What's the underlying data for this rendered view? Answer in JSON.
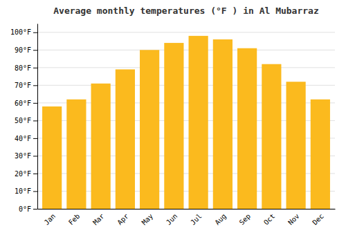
{
  "chart_data": {
    "type": "bar",
    "title": "Average monthly temperatures (°F ) in Al Mubarraz",
    "categories": [
      "Jan",
      "Feb",
      "Mar",
      "Apr",
      "May",
      "Jun",
      "Jul",
      "Aug",
      "Sep",
      "Oct",
      "Nov",
      "Dec"
    ],
    "values": [
      58,
      62,
      71,
      79,
      90,
      94,
      98,
      96,
      91,
      82,
      72,
      62
    ],
    "color": "#FBBA1E",
    "ylim": [
      0,
      105
    ],
    "yticks": [
      {
        "value": 0,
        "label": "0°F"
      },
      {
        "value": 10,
        "label": "10°F"
      },
      {
        "value": 20,
        "label": "20°F"
      },
      {
        "value": 30,
        "label": "30°F"
      },
      {
        "value": 40,
        "label": "40°F"
      },
      {
        "value": 50,
        "label": "50°F"
      },
      {
        "value": 60,
        "label": "60°F"
      },
      {
        "value": 70,
        "label": "70°F"
      },
      {
        "value": 80,
        "label": "80°F"
      },
      {
        "value": 90,
        "label": "90°F"
      },
      {
        "value": 100,
        "label": "100°F"
      }
    ],
    "grid": true
  }
}
